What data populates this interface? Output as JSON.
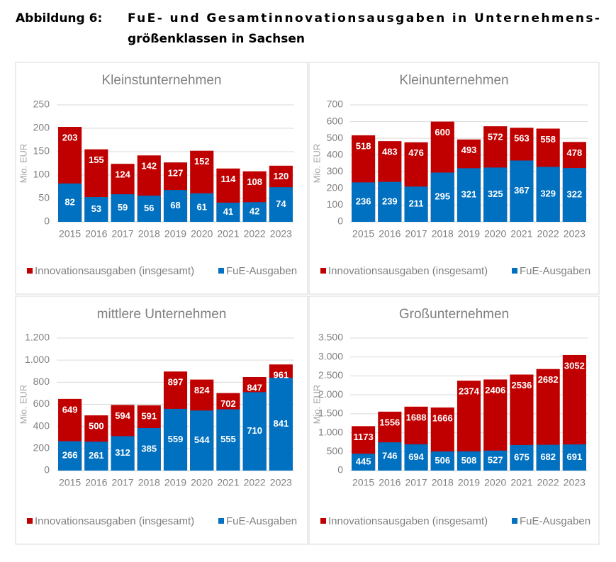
{
  "heading": {
    "label": "Abbildung 6:",
    "lines": [
      "FuE- und Gesamtinnovationsausgaben in Unternehmens-",
      "größenklassen in Sachsen"
    ]
  },
  "chart_data": [
    {
      "type": "bar",
      "title": "Kleinstunternehmen",
      "y_label": "Mio. EUR",
      "categories": [
        "2015",
        "2016",
        "2017",
        "2018",
        "2019",
        "2020",
        "2021",
        "2022",
        "2023"
      ],
      "series": [
        {
          "name": "Innovationsausgaben (insgesamt)",
          "color": "#c00000",
          "values": [
            203,
            155,
            124,
            142,
            127,
            152,
            114,
            108,
            120
          ]
        },
        {
          "name": "FuE-Ausgaben",
          "color": "#0070c0",
          "values": [
            82,
            53,
            59,
            56,
            68,
            61,
            41,
            42,
            74
          ]
        }
      ],
      "ylim": [
        0,
        250
      ],
      "yticks": [
        0,
        50,
        100,
        150,
        200,
        250
      ],
      "grid": true,
      "legend": "bottom"
    },
    {
      "type": "bar",
      "title": "Kleinunternehmen",
      "y_label": "Mio. EUR",
      "categories": [
        "2015",
        "2016",
        "2017",
        "2018",
        "2019",
        "2020",
        "2021",
        "2022",
        "2023"
      ],
      "series": [
        {
          "name": "Innovationsausgaben (insgesamt)",
          "color": "#c00000",
          "values": [
            518,
            483,
            476,
            600,
            493,
            572,
            563,
            558,
            478
          ]
        },
        {
          "name": "FuE-Ausgaben",
          "color": "#0070c0",
          "values": [
            236,
            239,
            211,
            295,
            321,
            325,
            367,
            329,
            322
          ]
        }
      ],
      "ylim": [
        0,
        700
      ],
      "yticks": [
        0,
        100,
        200,
        300,
        400,
        500,
        600,
        700
      ],
      "grid": true,
      "legend": "bottom"
    },
    {
      "type": "bar",
      "title": "mittlere Unternehmen",
      "y_label": "Mio. EUR",
      "categories": [
        "2015",
        "2016",
        "2017",
        "2018",
        "2019",
        "2020",
        "2021",
        "2022",
        "2023"
      ],
      "series": [
        {
          "name": "Innovationsausgaben (insgesamt)",
          "color": "#c00000",
          "values": [
            649,
            500,
            594,
            591,
            897,
            824,
            702,
            847,
            961
          ]
        },
        {
          "name": "FuE-Ausgaben",
          "color": "#0070c0",
          "values": [
            266,
            261,
            312,
            385,
            559,
            544,
            555,
            710,
            841
          ]
        }
      ],
      "ylim": [
        0,
        1200
      ],
      "yticks": [
        0,
        200,
        400,
        600,
        800,
        {
          "value": 1000,
          "label": "1.000"
        },
        {
          "value": 1200,
          "label": "1.200"
        }
      ],
      "grid": true,
      "legend": "bottom"
    },
    {
      "type": "bar",
      "title": "Großunternehmen",
      "y_label": "Mio. EUR",
      "categories": [
        "2015",
        "2016",
        "2017",
        "2018",
        "2019",
        "2020",
        "2021",
        "2022",
        "2023"
      ],
      "series": [
        {
          "name": "Innovationsausgaben (insgesamt)",
          "color": "#c00000",
          "values": [
            1173,
            1556,
            1688,
            1666,
            2374,
            2406,
            2536,
            2682,
            3052
          ]
        },
        {
          "name": "FuE-Ausgaben",
          "color": "#0070c0",
          "values": [
            445,
            746,
            694,
            506,
            508,
            527,
            675,
            682,
            691
          ]
        }
      ],
      "ylim": [
        0,
        3500
      ],
      "yticks": [
        0,
        500,
        {
          "value": 1000,
          "label": "1.000"
        },
        {
          "value": 1500,
          "label": "1.500"
        },
        {
          "value": 2000,
          "label": "2.000"
        },
        {
          "value": 2500,
          "label": "2.500"
        },
        {
          "value": 3000,
          "label": "3.000"
        },
        {
          "value": 3500,
          "label": "3.500"
        }
      ],
      "grid": true,
      "legend": "bottom"
    }
  ]
}
